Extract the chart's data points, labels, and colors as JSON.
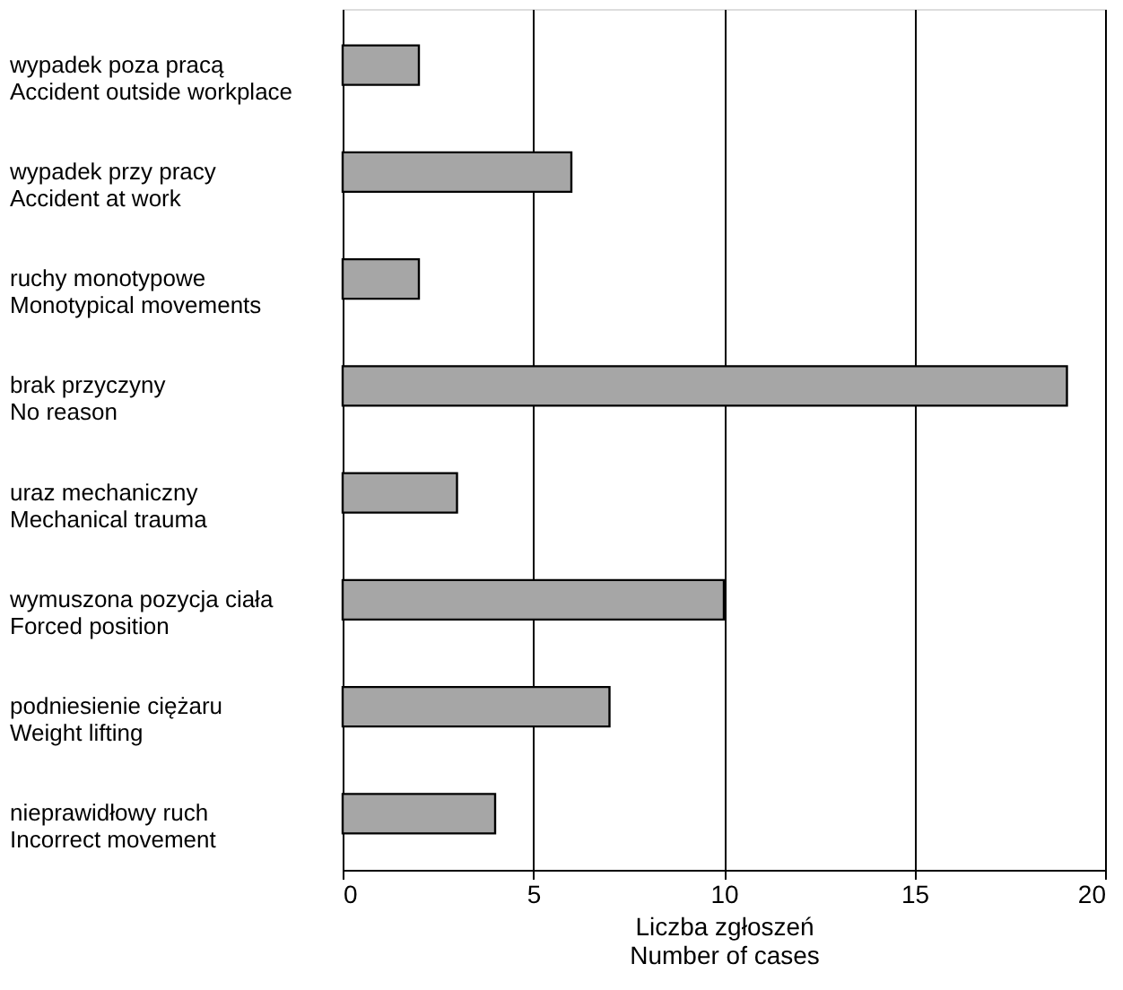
{
  "chart_data": {
    "type": "bar",
    "orientation": "horizontal",
    "xlabel": "Liczba zgłoszeń\nNumber of cases",
    "categories": [
      "wypadek poza pracą\nAccident outside workplace",
      "wypadek przy pracy\nAccident at work",
      "ruchy monotypowe\nMonotypical movements",
      "brak przyczyny\nNo reason",
      "uraz mechaniczny\nMechanical trauma",
      "wymuszona pozycja ciała\nForced position",
      "podniesienie ciężaru\nWeight lifting",
      "nieprawidłowy ruch\nIncorrect movement"
    ],
    "values": [
      2,
      6,
      2,
      19,
      3,
      10,
      7,
      4
    ],
    "color": "#a6a6a6",
    "xlim": [
      0,
      20
    ],
    "xticks": [
      0,
      5,
      10,
      15,
      20
    ],
    "grid": "x"
  }
}
